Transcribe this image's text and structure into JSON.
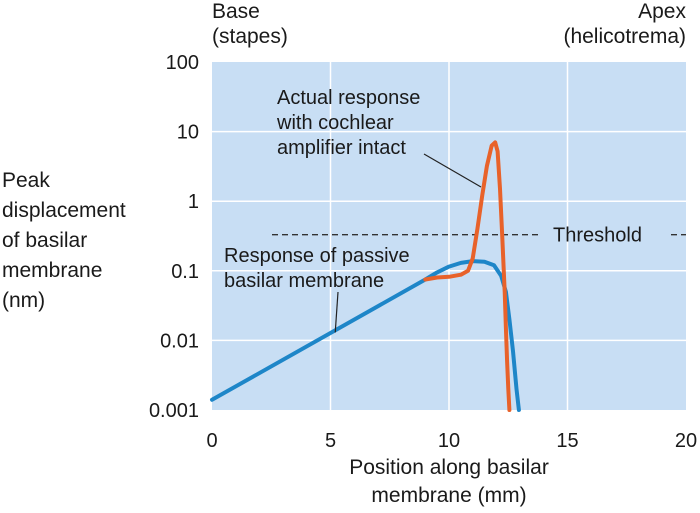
{
  "chart_data": {
    "type": "line",
    "title": "",
    "xlabel_lines": [
      "Position along basilar",
      "membrane (mm)"
    ],
    "ylabel_lines": [
      "Peak",
      "displacement",
      "of basilar",
      "membrane",
      "(nm)"
    ],
    "xlim": [
      0,
      20
    ],
    "ylim": [
      0.001,
      100
    ],
    "yscale": "log",
    "grid": true,
    "x_ticks": [
      0,
      5,
      10,
      15,
      20
    ],
    "x_tick_labels": [
      "0",
      "5",
      "10",
      "15",
      "20"
    ],
    "y_ticks": [
      0.001,
      0.01,
      0.1,
      1,
      10,
      100
    ],
    "y_tick_labels": [
      "0.001",
      "0.01",
      "0.1",
      "1",
      "10",
      "100"
    ],
    "corner_labels": {
      "left": [
        "Base",
        "(stapes)"
      ],
      "right": [
        "Apex",
        "(helicotrema)"
      ]
    },
    "threshold": {
      "y": 0.33,
      "label": "Threshold"
    },
    "series": [
      {
        "key": "active",
        "color": "#e8622a",
        "x": [
          9.0,
          9.5,
          10.0,
          10.5,
          10.8,
          11.0,
          11.2,
          11.4,
          11.6,
          11.8,
          11.95,
          12.05,
          12.15,
          12.25,
          12.35,
          12.4,
          12.45,
          12.5,
          12.55
        ],
        "y": [
          0.075,
          0.08,
          0.082,
          0.088,
          0.1,
          0.15,
          0.4,
          1.2,
          3.2,
          6.3,
          7.0,
          5.2,
          1.5,
          0.3,
          0.05,
          0.015,
          0.005,
          0.002,
          0.001
        ]
      },
      {
        "key": "passive",
        "color": "#1e86c8",
        "x": [
          0,
          9.0,
          9.5,
          10.0,
          10.5,
          11.0,
          11.5,
          11.9,
          12.2,
          12.4,
          12.55,
          12.7,
          12.85,
          12.95
        ],
        "y": [
          0.0014,
          0.075,
          0.095,
          0.115,
          0.13,
          0.138,
          0.135,
          0.12,
          0.085,
          0.05,
          0.02,
          0.007,
          0.002,
          0.001
        ]
      }
    ],
    "annotations": [
      {
        "key": "active",
        "lines": [
          "Actual response",
          "with cochlear",
          "amplifier intact"
        ],
        "pointer_x": 11.35,
        "pointer_y": 1.6
      },
      {
        "key": "passive",
        "lines": [
          "Response of passive",
          "basilar membrane"
        ],
        "pointer_x": 5.2,
        "pointer_y": 0.013
      }
    ],
    "colors": {
      "plot_background": "#c8def4",
      "grid": "#ffffff",
      "threshold_line": "#333333"
    }
  }
}
